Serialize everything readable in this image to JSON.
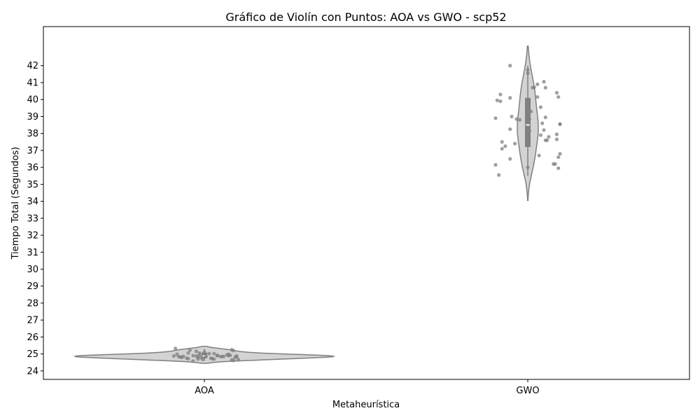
{
  "chart_data": {
    "type": "violin",
    "title": "Gráfico de Violín con Puntos: AOA vs GWO - scp52",
    "xlabel": "Metaheurística",
    "ylabel": "Tiempo Total (Segundos)",
    "ylim": [
      23.5,
      44.3
    ],
    "yticks": [
      24,
      25,
      26,
      27,
      28,
      29,
      30,
      31,
      32,
      33,
      34,
      35,
      36,
      37,
      38,
      39,
      40,
      41,
      42
    ],
    "categories": [
      "AOA",
      "GWO"
    ],
    "grid": false,
    "colors": {
      "violin_fill": "#d3d3d3",
      "violin_edge": "#808080",
      "box": "#808080",
      "median": "#ffffff",
      "points": "#808080"
    },
    "series": [
      {
        "category": "AOA",
        "box": {
          "q1": 24.75,
          "median": 24.88,
          "q3": 25.08,
          "whisker_low": 24.6,
          "whisker_high": 25.3
        },
        "violin_range": [
          24.45,
          25.45
        ],
        "points": [
          {
            "offset": -0.18,
            "value": 25.32
          },
          {
            "offset": -0.17,
            "value": 24.98
          },
          {
            "offset": -0.16,
            "value": 24.85
          },
          {
            "offset": -0.19,
            "value": 24.88
          },
          {
            "offset": -0.15,
            "value": 24.82
          },
          {
            "offset": -0.14,
            "value": 24.8
          },
          {
            "offset": -0.13,
            "value": 24.86
          },
          {
            "offset": -0.11,
            "value": 24.75
          },
          {
            "offset": -0.1,
            "value": 24.72
          },
          {
            "offset": -0.09,
            "value": 25.22
          },
          {
            "offset": -0.1,
            "value": 25.05
          },
          {
            "offset": -0.07,
            "value": 24.9
          },
          {
            "offset": -0.07,
            "value": 24.58
          },
          {
            "offset": -0.05,
            "value": 25.15
          },
          {
            "offset": -0.05,
            "value": 24.88
          },
          {
            "offset": -0.04,
            "value": 24.82
          },
          {
            "offset": -0.04,
            "value": 24.7
          },
          {
            "offset": -0.03,
            "value": 24.95
          },
          {
            "offset": -0.03,
            "value": 25.05
          },
          {
            "offset": -0.02,
            "value": 24.78
          },
          {
            "offset": -0.01,
            "value": 24.68
          },
          {
            "offset": 0.0,
            "value": 25.1
          },
          {
            "offset": 0.01,
            "value": 24.85
          },
          {
            "offset": 0.03,
            "value": 25.02
          },
          {
            "offset": 0.04,
            "value": 24.75
          },
          {
            "offset": 0.05,
            "value": 24.72
          },
          {
            "offset": 0.06,
            "value": 25.02
          },
          {
            "offset": 0.06,
            "value": 24.7
          },
          {
            "offset": 0.08,
            "value": 24.92
          },
          {
            "offset": 0.08,
            "value": 24.9
          },
          {
            "offset": 0.1,
            "value": 24.85
          },
          {
            "offset": 0.11,
            "value": 24.85
          },
          {
            "offset": 0.12,
            "value": 24.85
          },
          {
            "offset": 0.14,
            "value": 24.95
          },
          {
            "offset": 0.15,
            "value": 24.9
          },
          {
            "offset": 0.15,
            "value": 24.98
          },
          {
            "offset": 0.16,
            "value": 24.92
          },
          {
            "offset": 0.17,
            "value": 24.65
          },
          {
            "offset": 0.17,
            "value": 25.25
          },
          {
            "offset": 0.18,
            "value": 25.2
          },
          {
            "offset": 0.18,
            "value": 24.62
          },
          {
            "offset": 0.19,
            "value": 24.8
          },
          {
            "offset": 0.2,
            "value": 24.88
          },
          {
            "offset": 0.2,
            "value": 24.85
          },
          {
            "offset": 0.21,
            "value": 24.68
          }
        ]
      },
      {
        "category": "GWO",
        "box": {
          "q1": 37.2,
          "median": 38.5,
          "q3": 40.1,
          "whisker_low": 35.5,
          "whisker_high": 42.0
        },
        "violin_range": [
          34.05,
          43.15
        ],
        "points": [
          {
            "offset": -0.2,
            "value": 38.9
          },
          {
            "offset": -0.2,
            "value": 36.15
          },
          {
            "offset": -0.19,
            "value": 39.95
          },
          {
            "offset": -0.18,
            "value": 35.55
          },
          {
            "offset": -0.17,
            "value": 40.3
          },
          {
            "offset": -0.17,
            "value": 39.9
          },
          {
            "offset": -0.16,
            "value": 37.1
          },
          {
            "offset": -0.16,
            "value": 37.5
          },
          {
            "offset": -0.14,
            "value": 37.25
          },
          {
            "offset": -0.11,
            "value": 42.0
          },
          {
            "offset": -0.11,
            "value": 40.1
          },
          {
            "offset": -0.11,
            "value": 38.25
          },
          {
            "offset": -0.11,
            "value": 36.5
          },
          {
            "offset": -0.1,
            "value": 39.0
          },
          {
            "offset": -0.08,
            "value": 37.4
          },
          {
            "offset": -0.07,
            "value": 38.85
          },
          {
            "offset": -0.05,
            "value": 38.8
          },
          {
            "offset": 0.0,
            "value": 41.75
          },
          {
            "offset": 0.0,
            "value": 41.55
          },
          {
            "offset": 0.0,
            "value": 39.1
          },
          {
            "offset": 0.0,
            "value": 38.35
          },
          {
            "offset": 0.0,
            "value": 36.0
          },
          {
            "offset": 0.01,
            "value": 38.15
          },
          {
            "offset": 0.01,
            "value": 38.85
          },
          {
            "offset": 0.02,
            "value": 39.3
          },
          {
            "offset": 0.03,
            "value": 40.7
          },
          {
            "offset": 0.04,
            "value": 40.72
          },
          {
            "offset": 0.06,
            "value": 40.9
          },
          {
            "offset": 0.06,
            "value": 40.15
          },
          {
            "offset": 0.07,
            "value": 36.7
          },
          {
            "offset": 0.08,
            "value": 37.9
          },
          {
            "offset": 0.08,
            "value": 39.55
          },
          {
            "offset": 0.09,
            "value": 38.6
          },
          {
            "offset": 0.1,
            "value": 38.2
          },
          {
            "offset": 0.1,
            "value": 41.05
          },
          {
            "offset": 0.11,
            "value": 40.7
          },
          {
            "offset": 0.11,
            "value": 38.95
          },
          {
            "offset": 0.11,
            "value": 37.6
          },
          {
            "offset": 0.12,
            "value": 37.6
          },
          {
            "offset": 0.13,
            "value": 37.8
          },
          {
            "offset": 0.16,
            "value": 36.2
          },
          {
            "offset": 0.17,
            "value": 36.2
          },
          {
            "offset": 0.18,
            "value": 40.4
          },
          {
            "offset": 0.18,
            "value": 37.95
          },
          {
            "offset": 0.18,
            "value": 37.65
          },
          {
            "offset": 0.19,
            "value": 40.15
          },
          {
            "offset": 0.19,
            "value": 35.95
          },
          {
            "offset": 0.19,
            "value": 36.6
          },
          {
            "offset": 0.2,
            "value": 38.55
          },
          {
            "offset": 0.2,
            "value": 38.55
          },
          {
            "offset": 0.2,
            "value": 36.8
          }
        ]
      }
    ]
  }
}
